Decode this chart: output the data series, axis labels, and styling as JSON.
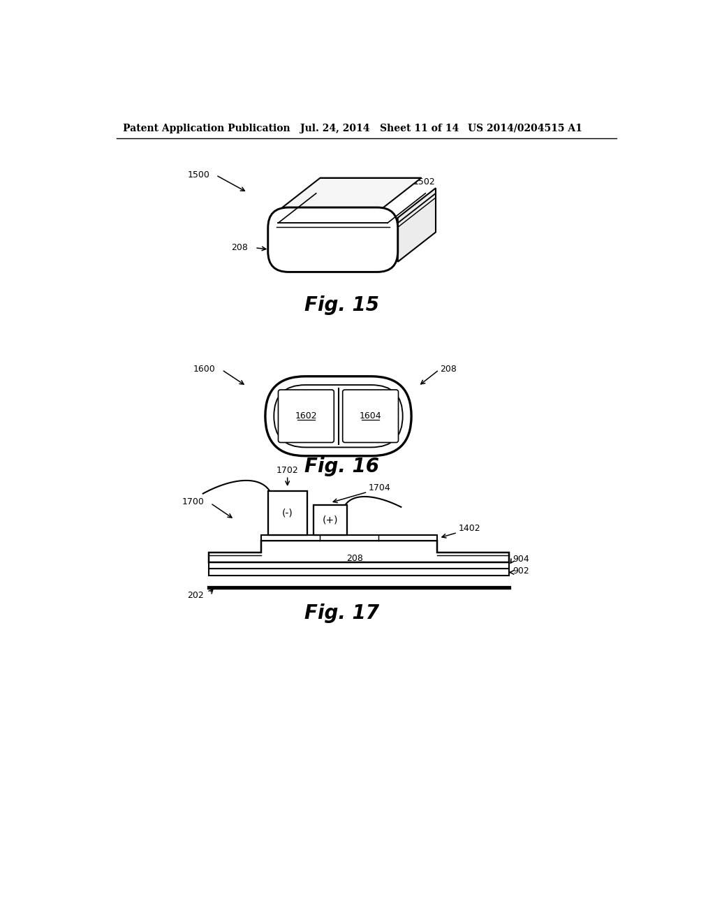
{
  "header_left": "Patent Application Publication",
  "header_mid": "Jul. 24, 2014   Sheet 11 of 14",
  "header_right": "US 2014/0204515 A1",
  "fig15_label": "Fig. 15",
  "fig16_label": "Fig. 16",
  "fig17_label": "Fig. 17",
  "bg_color": "#ffffff",
  "line_color": "#000000"
}
